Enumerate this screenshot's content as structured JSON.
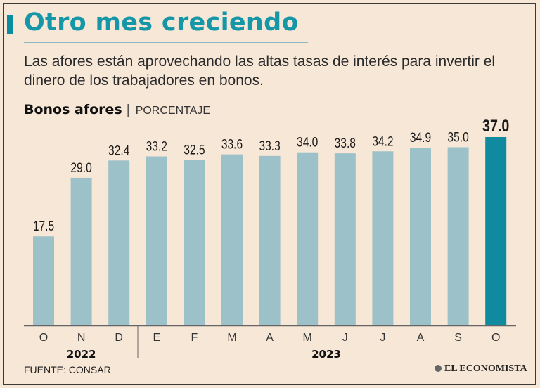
{
  "header": {
    "title": "Otro mes creciendo",
    "subtitle": "Las afores están aprovechando las altas tasas de interés para invertir el dinero de los trabajadores en bonos."
  },
  "chart_header": {
    "title": "Bonos afores",
    "separator": "|",
    "unit": "PORCENTAJE"
  },
  "chart_data": {
    "type": "bar",
    "title": "Bonos afores",
    "ylabel": "PORCENTAJE",
    "xlabel": "",
    "categories": [
      "O",
      "N",
      "D",
      "E",
      "F",
      "M",
      "A",
      "M",
      "J",
      "J",
      "A",
      "S",
      "O"
    ],
    "values": [
      17.5,
      29.0,
      32.4,
      33.2,
      32.5,
      33.6,
      33.3,
      34.0,
      33.8,
      34.2,
      34.9,
      35.0,
      37.0
    ],
    "value_labels": [
      "17.5",
      "29.0",
      "32.4",
      "33.2",
      "32.5",
      "33.6",
      "33.3",
      "34.0",
      "33.8",
      "34.2",
      "34.9",
      "35.0",
      "37.0"
    ],
    "year_groups": [
      {
        "label": "2022",
        "start": 0,
        "end": 2
      },
      {
        "label": "2023",
        "start": 3,
        "end": 12
      }
    ],
    "ylim": [
      0,
      37.0
    ],
    "highlight_index": 12,
    "colors": {
      "bar": "#9dc1c9",
      "highlight": "#0f8a9e",
      "axis": "#666666"
    },
    "grid": false
  },
  "footer": {
    "source": "FUENTE: CONSAR",
    "brand": "EL ECONOMISTA"
  }
}
